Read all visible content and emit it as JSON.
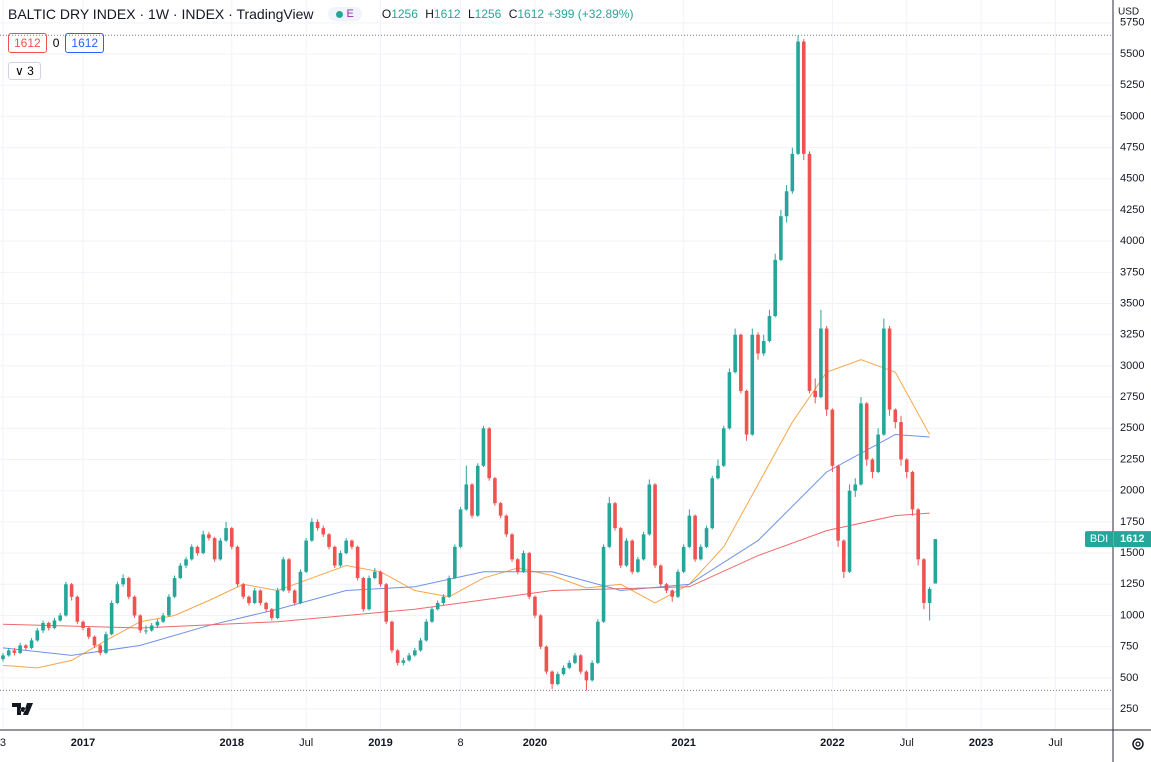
{
  "ui": {
    "title": "BALTIC DRY INDEX · 1W · INDEX · TradingView",
    "badge": "E",
    "ohlc_letters": [
      "O",
      "H",
      "L",
      "C"
    ],
    "change": "+399 (+32.89%)",
    "indicators": [
      "1612",
      "0",
      "1612"
    ],
    "collapse": "3",
    "currency": "USD",
    "symbol_tag": "BDI"
  },
  "chart_data": {
    "type": "candlestick",
    "up_color": "#26a69a",
    "down_color": "#ef5350",
    "ohlc": [
      [
        650,
        700,
        630,
        680
      ],
      [
        680,
        740,
        670,
        720
      ],
      [
        720,
        740,
        680,
        700
      ],
      [
        700,
        780,
        690,
        760
      ],
      [
        760,
        770,
        720,
        740
      ],
      [
        740,
        820,
        730,
        800
      ],
      [
        800,
        900,
        790,
        880
      ],
      [
        880,
        960,
        860,
        940
      ],
      [
        940,
        950,
        880,
        900
      ],
      [
        900,
        980,
        890,
        960
      ],
      [
        960,
        1020,
        950,
        1000
      ],
      [
        1000,
        1270,
        990,
        1250
      ],
      [
        1250,
        1260,
        1120,
        1150
      ],
      [
        1150,
        1160,
        930,
        950
      ],
      [
        950,
        960,
        880,
        900
      ],
      [
        900,
        910,
        810,
        830
      ],
      [
        830,
        840,
        740,
        760
      ],
      [
        760,
        770,
        680,
        700
      ],
      [
        700,
        870,
        690,
        850
      ],
      [
        850,
        1120,
        840,
        1100
      ],
      [
        1100,
        1270,
        1090,
        1250
      ],
      [
        1250,
        1330,
        1230,
        1300
      ],
      [
        1300,
        1310,
        1130,
        1150
      ],
      [
        1150,
        1160,
        980,
        1000
      ],
      [
        1000,
        1010,
        860,
        880
      ],
      [
        880,
        920,
        850,
        880
      ],
      [
        880,
        940,
        870,
        920
      ],
      [
        920,
        970,
        900,
        950
      ],
      [
        950,
        1020,
        940,
        1000
      ],
      [
        1000,
        1170,
        990,
        1150
      ],
      [
        1150,
        1320,
        1140,
        1300
      ],
      [
        1300,
        1420,
        1290,
        1400
      ],
      [
        1400,
        1470,
        1380,
        1450
      ],
      [
        1450,
        1570,
        1440,
        1550
      ],
      [
        1550,
        1560,
        1480,
        1500
      ],
      [
        1500,
        1680,
        1490,
        1650
      ],
      [
        1650,
        1670,
        1600,
        1620
      ],
      [
        1620,
        1630,
        1430,
        1450
      ],
      [
        1450,
        1620,
        1440,
        1600
      ],
      [
        1600,
        1750,
        1590,
        1700
      ],
      [
        1700,
        1710,
        1530,
        1550
      ],
      [
        1550,
        1560,
        1230,
        1250
      ],
      [
        1250,
        1260,
        1130,
        1150
      ],
      [
        1150,
        1160,
        1080,
        1100
      ],
      [
        1100,
        1220,
        1090,
        1200
      ],
      [
        1200,
        1210,
        1080,
        1100
      ],
      [
        1100,
        1110,
        1030,
        1050
      ],
      [
        1050,
        1060,
        960,
        980
      ],
      [
        980,
        1220,
        970,
        1200
      ],
      [
        1200,
        1470,
        1190,
        1450
      ],
      [
        1450,
        1460,
        1180,
        1200
      ],
      [
        1200,
        1210,
        1080,
        1100
      ],
      [
        1100,
        1370,
        1090,
        1350
      ],
      [
        1350,
        1620,
        1340,
        1600
      ],
      [
        1600,
        1780,
        1590,
        1750
      ],
      [
        1750,
        1770,
        1680,
        1700
      ],
      [
        1700,
        1720,
        1630,
        1650
      ],
      [
        1650,
        1660,
        1530,
        1550
      ],
      [
        1550,
        1560,
        1380,
        1400
      ],
      [
        1400,
        1520,
        1390,
        1500
      ],
      [
        1500,
        1620,
        1490,
        1600
      ],
      [
        1600,
        1610,
        1530,
        1550
      ],
      [
        1550,
        1560,
        1280,
        1300
      ],
      [
        1300,
        1310,
        1030,
        1050
      ],
      [
        1050,
        1320,
        1040,
        1300
      ],
      [
        1300,
        1380,
        1290,
        1350
      ],
      [
        1350,
        1360,
        1230,
        1250
      ],
      [
        1250,
        1260,
        930,
        950
      ],
      [
        950,
        960,
        700,
        720
      ],
      [
        720,
        730,
        600,
        620
      ],
      [
        620,
        660,
        600,
        640
      ],
      [
        640,
        700,
        630,
        680
      ],
      [
        680,
        740,
        670,
        720
      ],
      [
        720,
        820,
        710,
        800
      ],
      [
        800,
        970,
        790,
        950
      ],
      [
        950,
        1070,
        940,
        1050
      ],
      [
        1050,
        1120,
        1040,
        1100
      ],
      [
        1100,
        1170,
        1080,
        1150
      ],
      [
        1150,
        1320,
        1140,
        1300
      ],
      [
        1300,
        1570,
        1290,
        1550
      ],
      [
        1550,
        1870,
        1540,
        1850
      ],
      [
        1850,
        2200,
        1840,
        2050
      ],
      [
        2050,
        2060,
        1780,
        1800
      ],
      [
        1800,
        2220,
        1790,
        2200
      ],
      [
        2200,
        2520,
        2190,
        2500
      ],
      [
        2500,
        2510,
        2080,
        2100
      ],
      [
        2100,
        2110,
        1880,
        1900
      ],
      [
        1900,
        1910,
        1780,
        1800
      ],
      [
        1800,
        1810,
        1630,
        1650
      ],
      [
        1650,
        1660,
        1430,
        1450
      ],
      [
        1450,
        1460,
        1330,
        1350
      ],
      [
        1350,
        1520,
        1340,
        1500
      ],
      [
        1500,
        1510,
        1130,
        1150
      ],
      [
        1150,
        1160,
        980,
        1000
      ],
      [
        1000,
        1010,
        730,
        750
      ],
      [
        750,
        760,
        530,
        550
      ],
      [
        550,
        560,
        410,
        450
      ],
      [
        450,
        550,
        440,
        530
      ],
      [
        530,
        600,
        520,
        580
      ],
      [
        580,
        640,
        570,
        620
      ],
      [
        620,
        700,
        610,
        680
      ],
      [
        680,
        690,
        530,
        550
      ],
      [
        550,
        560,
        400,
        480
      ],
      [
        480,
        640,
        470,
        620
      ],
      [
        620,
        970,
        610,
        950
      ],
      [
        950,
        1570,
        940,
        1550
      ],
      [
        1550,
        1950,
        1540,
        1900
      ],
      [
        1900,
        1910,
        1680,
        1700
      ],
      [
        1700,
        1710,
        1380,
        1400
      ],
      [
        1400,
        1620,
        1390,
        1600
      ],
      [
        1600,
        1610,
        1330,
        1350
      ],
      [
        1350,
        1470,
        1340,
        1450
      ],
      [
        1450,
        1670,
        1440,
        1650
      ],
      [
        1650,
        2090,
        1640,
        2050
      ],
      [
        2050,
        2060,
        1380,
        1400
      ],
      [
        1400,
        1410,
        1230,
        1250
      ],
      [
        1250,
        1260,
        1180,
        1200
      ],
      [
        1200,
        1210,
        1110,
        1150
      ],
      [
        1150,
        1370,
        1140,
        1350
      ],
      [
        1350,
        1570,
        1340,
        1550
      ],
      [
        1550,
        1850,
        1540,
        1800
      ],
      [
        1800,
        1810,
        1430,
        1450
      ],
      [
        1450,
        1570,
        1440,
        1550
      ],
      [
        1550,
        1720,
        1540,
        1700
      ],
      [
        1700,
        2120,
        1690,
        2100
      ],
      [
        2100,
        2250,
        2090,
        2200
      ],
      [
        2200,
        2520,
        2190,
        2500
      ],
      [
        2500,
        2980,
        2490,
        2950
      ],
      [
        2950,
        3300,
        2940,
        3250
      ],
      [
        3250,
        3260,
        2780,
        2800
      ],
      [
        2800,
        2810,
        2400,
        2450
      ],
      [
        2450,
        3300,
        2440,
        3250
      ],
      [
        3250,
        3270,
        3050,
        3100
      ],
      [
        3100,
        3250,
        3080,
        3200
      ],
      [
        3200,
        3450,
        3190,
        3400
      ],
      [
        3400,
        3900,
        3390,
        3850
      ],
      [
        3850,
        4250,
        3840,
        4200
      ],
      [
        4200,
        4450,
        4150,
        4400
      ],
      [
        4400,
        4750,
        4380,
        4700
      ],
      [
        4700,
        5650,
        4690,
        5600
      ],
      [
        5600,
        5620,
        4650,
        4700
      ],
      [
        4700,
        4720,
        2780,
        2800
      ],
      [
        2800,
        2900,
        2700,
        2750
      ],
      [
        2750,
        3450,
        2740,
        3300
      ],
      [
        3300,
        3320,
        2600,
        2650
      ],
      [
        2650,
        2660,
        2150,
        2200
      ],
      [
        2200,
        2210,
        1550,
        1600
      ],
      [
        1600,
        1610,
        1300,
        1350
      ],
      [
        1350,
        2050,
        1340,
        2000
      ],
      [
        2000,
        2100,
        1950,
        2050
      ],
      [
        2050,
        2750,
        2040,
        2700
      ],
      [
        2700,
        2710,
        2200,
        2250
      ],
      [
        2250,
        2260,
        2100,
        2150
      ],
      [
        2150,
        2500,
        2140,
        2450
      ],
      [
        2450,
        3380,
        2440,
        3300
      ],
      [
        3300,
        3320,
        2600,
        2650
      ],
      [
        2650,
        2660,
        2500,
        2550
      ],
      [
        2550,
        2600,
        2200,
        2250
      ],
      [
        2250,
        2260,
        2100,
        2150
      ],
      [
        2150,
        2160,
        1800,
        1850
      ],
      [
        1850,
        1860,
        1400,
        1450
      ],
      [
        1450,
        1460,
        1050,
        1100
      ],
      [
        1100,
        1230,
        960,
        1213
      ],
      [
        1256,
        1612,
        1256,
        1612
      ]
    ],
    "ma_lines": [
      {
        "color": "#f7a64a",
        "x": [
          0,
          6,
          12,
          18,
          24,
          30,
          36,
          42,
          48,
          54,
          60,
          66,
          72,
          78,
          84,
          90,
          96,
          102,
          108,
          114,
          120,
          126,
          132,
          138,
          144,
          150,
          156,
          162
        ],
        "values": [
          600,
          580,
          640,
          800,
          950,
          1000,
          1120,
          1250,
          1200,
          1300,
          1400,
          1350,
          1200,
          1150,
          1300,
          1380,
          1320,
          1220,
          1250,
          1100,
          1250,
          1550,
          2050,
          2550,
          2950,
          3050,
          2950,
          2450
        ]
      },
      {
        "color": "#6f92e6",
        "x": [
          0,
          12,
          24,
          36,
          48,
          60,
          72,
          84,
          96,
          108,
          120,
          132,
          144,
          156,
          162
        ],
        "values": [
          740,
          680,
          760,
          920,
          1050,
          1200,
          1230,
          1350,
          1350,
          1200,
          1250,
          1600,
          2150,
          2450,
          2430
        ]
      },
      {
        "color": "#ee6a6a",
        "x": [
          0,
          24,
          48,
          72,
          96,
          120,
          132,
          144,
          156,
          162
        ],
        "values": [
          930,
          900,
          950,
          1050,
          1200,
          1230,
          1480,
          1680,
          1800,
          1820
        ]
      }
    ],
    "xlim": [
      -0.52,
      194.06
    ],
    "xticks": [
      {
        "value": 0,
        "label": "3"
      },
      {
        "value": 14,
        "label": "2017"
      },
      {
        "value": 40,
        "label": "2018"
      },
      {
        "value": 53,
        "label": "Jul"
      },
      {
        "value": 66,
        "label": "2019"
      },
      {
        "value": 80,
        "label": "8"
      },
      {
        "value": 93,
        "label": "2020"
      },
      {
        "value": 119,
        "label": "2021"
      },
      {
        "value": 145,
        "label": "2022"
      },
      {
        "value": 158,
        "label": "Jul"
      },
      {
        "value": 171,
        "label": "2023"
      },
      {
        "value": 184,
        "label": "Jul"
      }
    ],
    "ylim": [
      82,
      5933
    ],
    "yticks": [
      250,
      500,
      750,
      1000,
      1250,
      1500,
      1750,
      2000,
      2250,
      2500,
      2750,
      3000,
      3250,
      3500,
      3750,
      4000,
      4250,
      4500,
      4750,
      5000,
      5250,
      5500,
      5750
    ]
  }
}
